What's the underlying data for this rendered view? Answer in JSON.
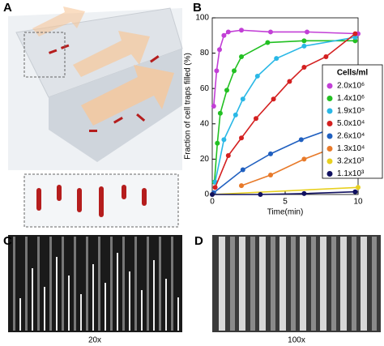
{
  "panels": {
    "a": "A",
    "b": "B",
    "c": "C",
    "d": "D",
    "c_caption": "20x",
    "d_caption": "100x"
  },
  "chart_data": {
    "type": "line",
    "xlabel": "Time(min)",
    "ylabel": "Fraction of cell traps filled (%)",
    "xlim": [
      0,
      10
    ],
    "xticks": [
      0,
      5,
      10
    ],
    "ylim": [
      0,
      100
    ],
    "yticks": [
      0,
      20,
      40,
      60,
      80,
      100
    ],
    "legend_title": "Cells/ml",
    "legend": "right",
    "series": [
      {
        "name": "2.0x10⁶",
        "color": "#c23fd6",
        "x": [
          0.1,
          0.3,
          0.5,
          0.8,
          1.1,
          2,
          4,
          6.5,
          10
        ],
        "values": [
          50,
          70,
          82,
          90,
          92,
          93,
          92,
          92,
          91
        ]
      },
      {
        "name": "1.4x10⁶",
        "color": "#22c022",
        "x": [
          0.15,
          0.35,
          0.55,
          1,
          1.5,
          2,
          3.8,
          6.3,
          9.8
        ],
        "values": [
          7,
          29,
          46,
          59,
          70,
          78,
          86,
          87,
          87
        ]
      },
      {
        "name": "1.9x10⁵",
        "color": "#2ab8e6",
        "x": [
          0.2,
          0.8,
          1.6,
          2.1,
          3.1,
          4.4,
          6.3,
          9.8
        ],
        "values": [
          7,
          31,
          45,
          54,
          67,
          77,
          84,
          89
        ]
      },
      {
        "name": "5.0x10⁴",
        "color": "#d42020",
        "x": [
          0.2,
          1.1,
          2,
          3,
          4.2,
          5.3,
          6.3,
          7.8,
          9.8
        ],
        "values": [
          4,
          22,
          32,
          43,
          54,
          64,
          72,
          78,
          91
        ]
      },
      {
        "name": "2.6x10⁴",
        "color": "#2060c0",
        "x": [
          0.1,
          2.1,
          4,
          6.1,
          9.8
        ],
        "values": [
          1,
          14,
          23,
          31,
          42
        ]
      },
      {
        "name": "1.3x10⁴",
        "color": "#e87a2a",
        "x": [
          2,
          4,
          6.3,
          8.5,
          9.8
        ],
        "values": [
          5,
          11,
          20,
          27,
          35
        ]
      },
      {
        "name": "3.2x10³",
        "color": "#e8d020",
        "x": [
          0,
          10
        ],
        "values": [
          0,
          4
        ]
      },
      {
        "name": "1.1x10³",
        "color": "#101060",
        "x": [
          0,
          3.3,
          6.3,
          9.8
        ],
        "values": [
          0,
          0,
          0.5,
          1.5
        ]
      }
    ]
  }
}
